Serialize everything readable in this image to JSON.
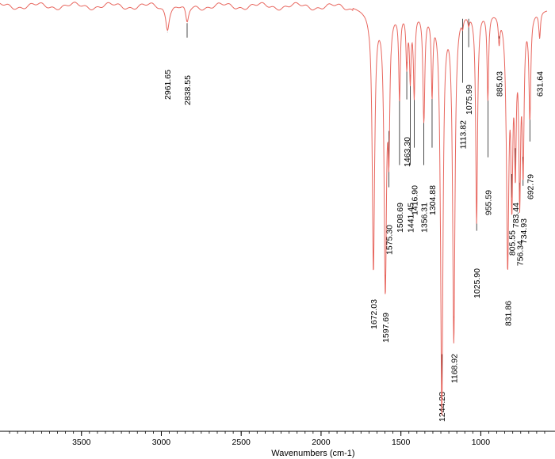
{
  "chart_data": {
    "type": "line",
    "title": "",
    "xlabel": "Wavenumbers (cm-1)",
    "ylabel": "",
    "xlim": [
      4010,
      585
    ],
    "ylim": [
      0,
      100
    ],
    "x_ticks": [
      3500,
      3000,
      2500,
      2000,
      1500,
      1000
    ],
    "x_tick_labels": [
      "3500",
      "3000",
      "2500",
      "2000",
      "1500",
      "1000"
    ],
    "grid": false,
    "legend": "none",
    "line_color": "#e8675f",
    "peaks": [
      {
        "x": 2961.65,
        "y": 93,
        "label": "2961.65"
      },
      {
        "x": 2838.55,
        "y": 95,
        "label": "2838.55"
      },
      {
        "x": 1672.03,
        "y": 38,
        "label": "1672.03"
      },
      {
        "x": 1597.69,
        "y": 35,
        "label": "1597.69"
      },
      {
        "x": 1575.3,
        "y": 70,
        "label": "1575.30"
      },
      {
        "x": 1508.69,
        "y": 78,
        "label": "1508.69"
      },
      {
        "x": 1463.3,
        "y": 86,
        "label": "1463.30"
      },
      {
        "x": 1441.45,
        "y": 83,
        "label": "1441.45"
      },
      {
        "x": 1416.9,
        "y": 79,
        "label": "1416.90"
      },
      {
        "x": 1356.31,
        "y": 73,
        "label": "1356.31"
      },
      {
        "x": 1304.88,
        "y": 80,
        "label": "1304.88"
      },
      {
        "x": 1244.28,
        "y": 5,
        "label": "1244.28"
      },
      {
        "x": 1168.92,
        "y": 22,
        "label": "1168.92"
      },
      {
        "x": 1113.82,
        "y": 96,
        "label": "1113.82"
      },
      {
        "x": 1075.99,
        "y": 96,
        "label": "1075.99"
      },
      {
        "x": 1025.9,
        "y": 49,
        "label": "1025.90"
      },
      {
        "x": 955.59,
        "y": 78,
        "label": "955.59"
      },
      {
        "x": 885.03,
        "y": 92,
        "label": "885.03"
      },
      {
        "x": 831.86,
        "y": 41,
        "label": "831.86"
      },
      {
        "x": 805.55,
        "y": 60,
        "label": "805.55"
      },
      {
        "x": 783.44,
        "y": 66,
        "label": "783.44"
      },
      {
        "x": 756.34,
        "y": 58,
        "label": "756.34"
      },
      {
        "x": 734.93,
        "y": 64,
        "label": "734.93"
      },
      {
        "x": 692.79,
        "y": 74,
        "label": "692.79"
      },
      {
        "x": 631.64,
        "y": 92,
        "label": "631.64"
      }
    ]
  }
}
